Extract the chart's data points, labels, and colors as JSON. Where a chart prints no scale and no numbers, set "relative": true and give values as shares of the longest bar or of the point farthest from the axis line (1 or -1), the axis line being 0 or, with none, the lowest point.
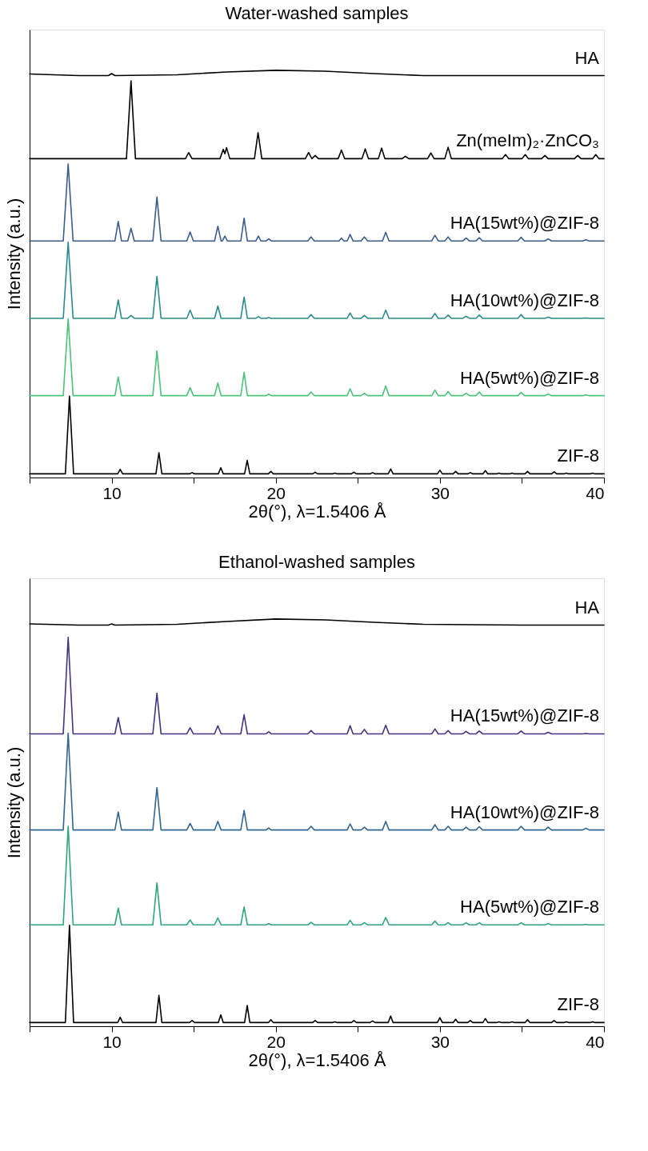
{
  "chart_data": [
    {
      "type": "line",
      "title": "Water-washed samples",
      "xlabel": "2θ(°), λ=1.5406 Å",
      "ylabel": "Intensity (a.u.)",
      "relative": true,
      "grid": false,
      "legend": false,
      "xlim": [
        5,
        40
      ],
      "xticks": [
        {
          "value": 5,
          "label": null
        },
        10,
        {
          "value": 15,
          "label": null
        },
        20,
        {
          "value": 25,
          "label": null
        },
        30,
        {
          "value": 35,
          "label": null
        },
        40
      ],
      "x": [
        5,
        7.05,
        7.35,
        7.65,
        10.2,
        10.4,
        10.6,
        10.98,
        11.18,
        11.38,
        12.51,
        12.76,
        13.01,
        14.58,
        14.78,
        14.98,
        16.27,
        16.47,
        16.67,
        16.75,
        16.9,
        17.05,
        17.87,
        18.07,
        18.27,
        18.79,
        18.94,
        19.09,
        19.42,
        19.57,
        19.72,
        21.95,
        22.15,
        22.35,
        23.85,
        24.0,
        24.15,
        24.35,
        24.53,
        24.71,
        25.2,
        25.4,
        25.6,
        26.5,
        26.7,
        26.9,
        29.5,
        29.7,
        29.9,
        30.3,
        30.5,
        30.7,
        31.4,
        31.6,
        31.8,
        32.2,
        32.4,
        32.6,
        34.75,
        34.95,
        35.15,
        36.4,
        36.6,
        36.8,
        38.7,
        38.9,
        39.1,
        40
      ],
      "series": [
        {
          "name": "HA",
          "color": "#000000",
          "x": [
            5,
            8,
            9.8,
            10,
            10.2,
            14,
            17,
            20,
            23,
            26,
            29,
            35,
            40
          ],
          "values": [
            0.991,
            0.987,
            0.987,
            0.992,
            0.987,
            0.989,
            0.996,
            1.0,
            0.998,
            0.992,
            0.987,
            0.987,
            0.987
          ]
        },
        {
          "name": "Zn(meIm)₂·ZnCO₃",
          "color": "#000000",
          "x": [
            5,
            10.9,
            11.18,
            11.45,
            14.5,
            14.69,
            14.9,
            16.6,
            16.8,
            16.9,
            17.0,
            17.2,
            18.7,
            18.92,
            19.15,
            21.8,
            22.0,
            22.2,
            22.4,
            22.6,
            23.8,
            24.0,
            24.2,
            25.25,
            25.45,
            25.65,
            26.25,
            26.45,
            26.65,
            27.7,
            27.9,
            28.1,
            29.25,
            29.45,
            29.65,
            30.3,
            30.5,
            30.7,
            33.8,
            34.0,
            34.2,
            35.0,
            35.2,
            35.4,
            36.2,
            36.4,
            36.6,
            38.2,
            38.4,
            38.6,
            39.3,
            39.5,
            39.7,
            40
          ],
          "values": [
            0.783,
            0.783,
            0.974,
            0.783,
            0.783,
            0.798,
            0.783,
            0.783,
            0.806,
            0.795,
            0.81,
            0.783,
            0.783,
            0.847,
            0.783,
            0.783,
            0.798,
            0.783,
            0.791,
            0.783,
            0.783,
            0.804,
            0.783,
            0.783,
            0.807,
            0.783,
            0.783,
            0.809,
            0.783,
            0.783,
            0.789,
            0.783,
            0.783,
            0.797,
            0.783,
            0.783,
            0.811,
            0.783,
            0.783,
            0.793,
            0.783,
            0.783,
            0.793,
            0.783,
            0.783,
            0.791,
            0.783,
            0.783,
            0.791,
            0.783,
            0.783,
            0.793,
            0.783,
            0.783
          ]
        },
        {
          "name": "HA(15wt%)@ZIF-8",
          "color": "#3b5d8c",
          "values": [
            0.581,
            0.581,
            0.77,
            0.581,
            0.581,
            0.629,
            0.581,
            0.581,
            0.612,
            0.581,
            0.581,
            0.689,
            0.581,
            0.581,
            0.603,
            0.581,
            0.581,
            0.617,
            0.581,
            0.581,
            0.593,
            0.581,
            0.581,
            0.637,
            0.581,
            0.581,
            0.593,
            0.581,
            0.581,
            0.586,
            0.581,
            0.581,
            0.591,
            0.581,
            0.581,
            0.588,
            0.581,
            0.581,
            0.597,
            0.581,
            0.581,
            0.591,
            0.581,
            0.581,
            0.602,
            0.581,
            0.581,
            0.595,
            0.581,
            0.581,
            0.591,
            0.581,
            0.581,
            0.588,
            0.581,
            0.581,
            0.589,
            0.581,
            0.581,
            0.59,
            0.581,
            0.581,
            0.586,
            0.581,
            0.581,
            0.584,
            0.581,
            0.581
          ]
        },
        {
          "name": "HA(10wt%)@ZIF-8",
          "color": "#2a8a8a",
          "values": [
            0.391,
            0.391,
            0.578,
            0.391,
            0.391,
            0.436,
            0.391,
            0.391,
            0.398,
            0.391,
            0.391,
            0.494,
            0.391,
            0.391,
            0.411,
            0.391,
            0.391,
            0.421,
            0.391,
            0.391,
            0.391,
            0.391,
            0.391,
            0.443,
            0.391,
            0.391,
            0.395,
            0.391,
            0.391,
            0.393,
            0.391,
            0.391,
            0.4,
            0.391,
            0.391,
            0.391,
            0.391,
            0.391,
            0.404,
            0.391,
            0.391,
            0.398,
            0.391,
            0.391,
            0.411,
            0.391,
            0.391,
            0.403,
            0.391,
            0.391,
            0.399,
            0.391,
            0.391,
            0.396,
            0.391,
            0.391,
            0.399,
            0.391,
            0.391,
            0.4,
            0.391,
            0.391,
            0.394,
            0.391,
            0.391,
            0.392,
            0.391,
            0.391
          ]
        },
        {
          "name": "HA(5wt%)@ZIF-8",
          "color": "#4cc17a",
          "values": [
            0.201,
            0.201,
            0.39,
            0.201,
            0.201,
            0.247,
            0.201,
            0.201,
            0.201,
            0.201,
            0.201,
            0.311,
            0.201,
            0.201,
            0.221,
            0.201,
            0.201,
            0.232,
            0.201,
            0.201,
            0.201,
            0.201,
            0.201,
            0.258,
            0.201,
            0.201,
            0.201,
            0.201,
            0.201,
            0.205,
            0.201,
            0.201,
            0.21,
            0.201,
            0.201,
            0.201,
            0.201,
            0.201,
            0.218,
            0.201,
            0.201,
            0.207,
            0.201,
            0.201,
            0.225,
            0.201,
            0.201,
            0.215,
            0.201,
            0.201,
            0.211,
            0.201,
            0.201,
            0.207,
            0.201,
            0.201,
            0.21,
            0.201,
            0.201,
            0.209,
            0.201,
            0.201,
            0.205,
            0.201,
            0.201,
            0.203,
            0.201,
            0.201
          ]
        },
        {
          "name": "ZIF-8",
          "color": "#000000",
          "x": [
            5,
            7.18,
            7.43,
            7.68,
            10.37,
            10.52,
            10.67,
            12.7,
            12.88,
            13.06,
            14.75,
            14.9,
            15.05,
            16.5,
            16.65,
            16.8,
            18.1,
            18.26,
            18.42,
            19.55,
            19.7,
            19.85,
            22.25,
            22.4,
            22.55,
            23.45,
            23.6,
            23.75,
            24.61,
            24.76,
            24.91,
            25.75,
            25.9,
            26.05,
            26.85,
            27.0,
            27.15,
            29.85,
            30.0,
            30.15,
            30.81,
            30.96,
            31.11,
            31.7,
            31.85,
            32.0,
            32.62,
            32.77,
            32.92,
            33.45,
            33.6,
            33.75,
            34.25,
            34.4,
            34.55,
            35.19,
            35.34,
            35.49,
            36.81,
            36.96,
            37.11,
            37.55,
            37.7,
            37.85,
            39.15,
            39.3,
            39.45,
            40
          ],
          "values": [
            0.009,
            0.009,
            0.2,
            0.009,
            0.009,
            0.02,
            0.009,
            0.009,
            0.061,
            0.009,
            0.009,
            0.012,
            0.009,
            0.009,
            0.024,
            0.009,
            0.009,
            0.042,
            0.009,
            0.009,
            0.015,
            0.009,
            0.009,
            0.013,
            0.009,
            0.009,
            0.011,
            0.009,
            0.009,
            0.013,
            0.009,
            0.009,
            0.012,
            0.009,
            0.009,
            0.021,
            0.009,
            0.009,
            0.018,
            0.009,
            0.009,
            0.015,
            0.009,
            0.009,
            0.012,
            0.009,
            0.009,
            0.017,
            0.009,
            0.009,
            0.011,
            0.009,
            0.009,
            0.011,
            0.009,
            0.009,
            0.015,
            0.009,
            0.009,
            0.014,
            0.009,
            0.009,
            0.011,
            0.009,
            0.009,
            0.011,
            0.009,
            0.009
          ]
        }
      ]
    },
    {
      "type": "line",
      "title": "Ethanol-washed samples",
      "xlabel": "2θ(°), λ=1.5406 Å",
      "ylabel": "Intensity (a.u.)",
      "relative": true,
      "grid": false,
      "legend": false,
      "xlim": [
        5,
        40
      ],
      "xticks": [
        {
          "value": 5,
          "label": null
        },
        10,
        {
          "value": 15,
          "label": null
        },
        20,
        {
          "value": 25,
          "label": null
        },
        30,
        {
          "value": 35,
          "label": null
        },
        40
      ],
      "x": [
        5,
        7.05,
        7.35,
        7.65,
        10.2,
        10.4,
        10.6,
        10.98,
        11.18,
        11.38,
        12.51,
        12.76,
        13.01,
        14.58,
        14.78,
        14.98,
        16.27,
        16.47,
        16.67,
        16.75,
        16.9,
        17.05,
        17.87,
        18.07,
        18.27,
        18.79,
        18.94,
        19.09,
        19.42,
        19.57,
        19.72,
        21.95,
        22.15,
        22.35,
        23.85,
        24.0,
        24.15,
        24.35,
        24.53,
        24.71,
        25.2,
        25.4,
        25.6,
        26.5,
        26.7,
        26.9,
        29.5,
        29.7,
        29.9,
        30.3,
        30.5,
        30.7,
        31.4,
        31.6,
        31.8,
        32.2,
        32.4,
        32.6,
        34.75,
        34.95,
        35.15,
        36.4,
        36.6,
        36.8,
        38.7,
        38.9,
        39.1,
        40
      ],
      "series": [
        {
          "name": "HA",
          "color": "#000000",
          "x": [
            5,
            8,
            9.8,
            10,
            10.2,
            14,
            17,
            20,
            23,
            26,
            29,
            35,
            40
          ],
          "values": [
            0.988,
            0.985,
            0.985,
            0.988,
            0.985,
            0.987,
            0.994,
            1.0,
            0.998,
            0.992,
            0.987,
            0.985,
            0.985
          ]
        },
        {
          "name": "HA(15wt%)@ZIF-8",
          "color": "#46327e",
          "values": [
            0.718,
            0.718,
            0.955,
            0.718,
            0.718,
            0.758,
            0.718,
            0.718,
            0.718,
            0.718,
            0.718,
            0.818,
            0.718,
            0.718,
            0.733,
            0.718,
            0.718,
            0.738,
            0.718,
            0.718,
            0.718,
            0.718,
            0.718,
            0.765,
            0.718,
            0.718,
            0.718,
            0.718,
            0.718,
            0.723,
            0.718,
            0.718,
            0.726,
            0.718,
            0.718,
            0.718,
            0.718,
            0.718,
            0.738,
            0.718,
            0.718,
            0.729,
            0.718,
            0.718,
            0.739,
            0.718,
            0.718,
            0.73,
            0.718,
            0.718,
            0.726,
            0.718,
            0.718,
            0.724,
            0.718,
            0.718,
            0.725,
            0.718,
            0.718,
            0.725,
            0.718,
            0.718,
            0.722,
            0.718,
            0.718,
            0.719,
            0.718,
            0.718
          ]
        },
        {
          "name": "HA(10wt%)@ZIF-8",
          "color": "#33668e",
          "values": [
            0.482,
            0.482,
            0.72,
            0.482,
            0.482,
            0.526,
            0.482,
            0.482,
            0.482,
            0.482,
            0.482,
            0.586,
            0.482,
            0.482,
            0.498,
            0.482,
            0.482,
            0.503,
            0.482,
            0.482,
            0.482,
            0.482,
            0.482,
            0.53,
            0.482,
            0.482,
            0.482,
            0.482,
            0.482,
            0.487,
            0.482,
            0.482,
            0.491,
            0.482,
            0.482,
            0.482,
            0.482,
            0.482,
            0.497,
            0.482,
            0.482,
            0.489,
            0.482,
            0.482,
            0.503,
            0.482,
            0.482,
            0.495,
            0.482,
            0.482,
            0.491,
            0.482,
            0.482,
            0.489,
            0.482,
            0.482,
            0.49,
            0.482,
            0.482,
            0.491,
            0.482,
            0.482,
            0.489,
            0.482,
            0.482,
            0.486,
            0.482,
            0.482
          ]
        },
        {
          "name": "HA(5wt%)@ZIF-8",
          "color": "#2ea57c",
          "values": [
            0.249,
            0.249,
            0.491,
            0.249,
            0.249,
            0.29,
            0.249,
            0.249,
            0.249,
            0.249,
            0.249,
            0.352,
            0.249,
            0.249,
            0.261,
            0.249,
            0.249,
            0.266,
            0.249,
            0.249,
            0.249,
            0.249,
            0.249,
            0.293,
            0.249,
            0.249,
            0.249,
            0.249,
            0.249,
            0.252,
            0.249,
            0.249,
            0.255,
            0.249,
            0.249,
            0.249,
            0.249,
            0.249,
            0.26,
            0.249,
            0.249,
            0.254,
            0.249,
            0.249,
            0.267,
            0.249,
            0.249,
            0.258,
            0.249,
            0.249,
            0.254,
            0.249,
            0.249,
            0.254,
            0.249,
            0.249,
            0.254,
            0.249,
            0.249,
            0.254,
            0.249,
            0.249,
            0.252,
            0.249,
            0.249,
            0.25,
            0.249,
            0.249
          ]
        },
        {
          "name": "ZIF-8",
          "color": "#000000",
          "x": [
            5,
            7.18,
            7.43,
            7.68,
            10.37,
            10.52,
            10.67,
            12.7,
            12.88,
            13.06,
            14.75,
            14.9,
            15.05,
            16.5,
            16.65,
            16.8,
            18.1,
            18.26,
            18.42,
            19.55,
            19.7,
            19.85,
            22.25,
            22.4,
            22.55,
            23.45,
            23.6,
            23.75,
            24.61,
            24.76,
            24.91,
            25.75,
            25.9,
            26.05,
            26.85,
            27.0,
            27.15,
            29.85,
            30.0,
            30.15,
            30.81,
            30.96,
            31.11,
            31.7,
            31.85,
            32.0,
            32.62,
            32.77,
            32.92,
            33.45,
            33.6,
            33.75,
            34.25,
            34.4,
            34.55,
            35.19,
            35.34,
            35.49,
            36.81,
            36.96,
            37.11,
            37.55,
            37.7,
            37.85,
            39.15,
            39.3,
            39.45,
            40
          ],
          "values": [
            0.009,
            0.009,
            0.248,
            0.009,
            0.009,
            0.022,
            0.009,
            0.009,
            0.076,
            0.009,
            0.009,
            0.014,
            0.009,
            0.009,
            0.028,
            0.009,
            0.009,
            0.051,
            0.009,
            0.009,
            0.016,
            0.009,
            0.009,
            0.014,
            0.009,
            0.009,
            0.011,
            0.009,
            0.009,
            0.014,
            0.009,
            0.009,
            0.013,
            0.009,
            0.009,
            0.025,
            0.009,
            0.009,
            0.021,
            0.009,
            0.009,
            0.017,
            0.009,
            0.009,
            0.014,
            0.009,
            0.009,
            0.019,
            0.009,
            0.009,
            0.011,
            0.009,
            0.009,
            0.011,
            0.009,
            0.009,
            0.016,
            0.009,
            0.009,
            0.014,
            0.009,
            0.009,
            0.011,
            0.009,
            0.009,
            0.011,
            0.009,
            0.009
          ]
        }
      ]
    }
  ]
}
